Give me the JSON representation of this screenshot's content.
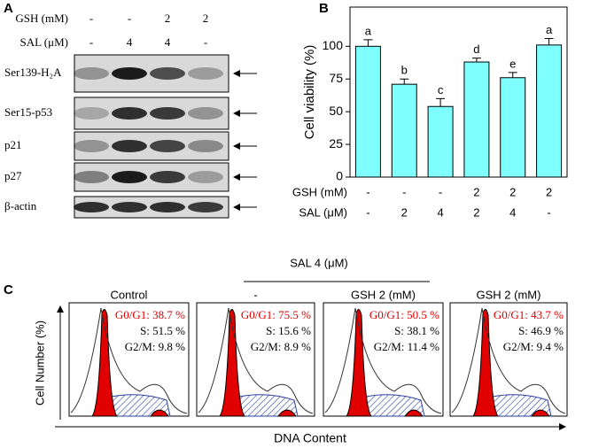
{
  "panel_a": {
    "label": "A",
    "row_headers": [
      "GSH (mM)",
      "SAL (μM)"
    ],
    "rows": [
      [
        "-",
        "-",
        "2",
        "2"
      ],
      [
        "-",
        "4",
        "4",
        "-"
      ]
    ],
    "blots": [
      "Ser139-H₂A",
      "Ser15-p53",
      "p21",
      "p27",
      "β-actin"
    ]
  },
  "chart_data": {
    "type": "bar",
    "label": "B",
    "y_label": "Cell viability (%)",
    "categories": [
      null,
      null,
      null,
      null,
      null,
      null
    ],
    "values": [
      100,
      71,
      54,
      88,
      76,
      101
    ],
    "errors": [
      5,
      4,
      6,
      3,
      4,
      5
    ],
    "significance": [
      "a",
      "b",
      "c",
      "d",
      "e",
      "a"
    ],
    "color": "#80ffff",
    "ylim": [
      0,
      130
    ],
    "yticks": [
      0,
      25,
      50,
      75,
      100
    ],
    "condition_headers": [
      "GSH (mM)",
      "SAL (μM)"
    ],
    "conditions": [
      [
        "-",
        "-",
        "-",
        "2",
        "2",
        "2"
      ],
      [
        "-",
        "2",
        "4",
        "2",
        "4",
        "-"
      ]
    ]
  },
  "panel_c": {
    "label": "C",
    "group_header": "SAL 4 (μM)",
    "y_label": "Cell Number (%)",
    "x_label": "DNA Content",
    "panels": [
      {
        "title": "Control",
        "g0g1": "G0/G1: 38.7 %",
        "s": "S: 51.5 %",
        "g2m": "G2/M: 9.8 %"
      },
      {
        "title": "-",
        "g0g1": "G0/G1: 75.5 %",
        "s": "S: 15.6 %",
        "g2m": "G2/M: 8.9 %"
      },
      {
        "title": "GSH 2 (mM)",
        "g0g1": "G0/G1: 50.5 %",
        "s": "S: 38.1 %",
        "g2m": "G2/M: 11.4 %"
      },
      {
        "title": "GSH 2 (mM)",
        "g0g1": "G0/G1: 43.7 %",
        "s": "S: 46.9 %",
        "g2m": "G2/M: 9.4 %"
      }
    ]
  }
}
